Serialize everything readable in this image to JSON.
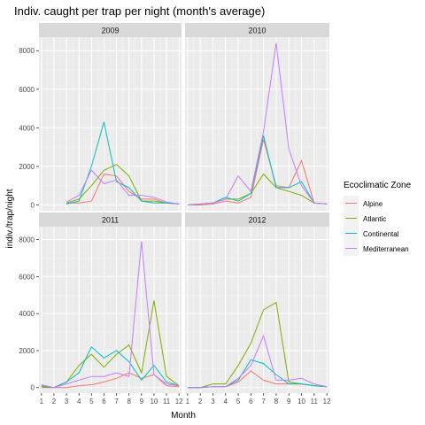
{
  "chart_data": {
    "type": "line",
    "title": "Indiv. caught per trap per night (month's average)",
    "xlabel": "Month",
    "ylabel": "indiv./trap/night",
    "x": [
      1,
      2,
      3,
      4,
      5,
      6,
      7,
      8,
      9,
      10,
      11,
      12
    ],
    "x_tick_labels": [
      "1",
      "2",
      "3",
      "4",
      "5",
      "6",
      "7",
      "8",
      "9",
      "10",
      "11",
      "12"
    ],
    "y_ticks": [
      0,
      2000,
      4000,
      6000,
      8000
    ],
    "y_tick_labels": [
      "0",
      "2000",
      "4000",
      "6000",
      "8000"
    ],
    "ylim": [
      -300,
      8700
    ],
    "xlim": [
      0.8,
      12.2
    ],
    "grid": true,
    "legend": {
      "title": "Ecoclimatic Zone",
      "position": "right",
      "entries": [
        "Alpine",
        "Atlantic",
        "Continental",
        "Mediterranean"
      ]
    },
    "colors": {
      "Alpine": "#F8766D",
      "Atlantic": "#7CAE00",
      "Continental": "#00BFC4",
      "Mediterranean": "#C77CFF",
      "panel_bg": "#EBEBEB",
      "strip_bg": "#D9D9D9",
      "grid_major": "#FFFFFF"
    },
    "panels": [
      {
        "label": "2009",
        "series": [
          {
            "name": "Alpine",
            "x": [
              3,
              4,
              5,
              6,
              7,
              8,
              9,
              10,
              11,
              12
            ],
            "values": [
              100,
              100,
              200,
              1600,
              1500,
              700,
              300,
              300,
              100,
              50
            ]
          },
          {
            "name": "Atlantic",
            "x": [
              3,
              4,
              5,
              6,
              7,
              8,
              9,
              10,
              11,
              12
            ],
            "values": [
              100,
              300,
              1000,
              1800,
              2100,
              1500,
              200,
              200,
              100,
              50
            ]
          },
          {
            "name": "Continental",
            "x": [
              3,
              4,
              5,
              6,
              7,
              8,
              9,
              10,
              11,
              12
            ],
            "values": [
              50,
              200,
              2000,
              4300,
              1200,
              900,
              200,
              100,
              100,
              50
            ]
          },
          {
            "name": "Mediterranean",
            "x": [
              3,
              4,
              5,
              6,
              7,
              8,
              9,
              10,
              11,
              12
            ],
            "values": [
              150,
              500,
              1800,
              1100,
              1300,
              500,
              500,
              400,
              150,
              50
            ]
          }
        ]
      },
      {
        "label": "2010",
        "series": [
          {
            "name": "Alpine",
            "x": [
              1,
              2,
              3,
              4,
              5,
              6,
              7,
              8,
              9,
              10,
              11,
              12
            ],
            "values": [
              0,
              0,
              50,
              200,
              100,
              400,
              3400,
              1000,
              900,
              2300,
              100,
              50
            ]
          },
          {
            "name": "Atlantic",
            "x": [
              1,
              2,
              3,
              4,
              5,
              6,
              7,
              8,
              9,
              10,
              11,
              12
            ],
            "values": [
              0,
              50,
              100,
              300,
              300,
              600,
              1600,
              900,
              700,
              500,
              100,
              50
            ]
          },
          {
            "name": "Continental",
            "x": [
              1,
              2,
              3,
              4,
              5,
              6,
              7,
              8,
              9,
              10,
              11,
              12
            ],
            "values": [
              0,
              50,
              100,
              400,
              200,
              600,
              3600,
              900,
              900,
              1200,
              100,
              50
            ]
          },
          {
            "name": "Mediterranean",
            "x": [
              1,
              2,
              3,
              4,
              5,
              6,
              7,
              8,
              9,
              10,
              11,
              12
            ],
            "values": [
              0,
              50,
              100,
              300,
              1500,
              700,
              3800,
              8400,
              2900,
              1000,
              100,
              50
            ]
          }
        ]
      },
      {
        "label": "2011",
        "series": [
          {
            "name": "Alpine",
            "x": [
              1,
              2,
              3,
              4,
              5,
              6,
              7,
              8,
              9,
              10,
              11,
              12
            ],
            "values": [
              0,
              0,
              0,
              100,
              150,
              300,
              500,
              800,
              500,
              700,
              100,
              50
            ]
          },
          {
            "name": "Atlantic",
            "x": [
              1,
              2,
              3,
              4,
              5,
              6,
              7,
              8,
              9,
              10,
              11,
              12
            ],
            "values": [
              50,
              0,
              300,
              1200,
              1800,
              1100,
              1800,
              2300,
              800,
              4700,
              600,
              100
            ]
          },
          {
            "name": "Continental",
            "x": [
              1,
              2,
              3,
              4,
              5,
              6,
              7,
              8,
              9,
              10,
              11,
              12
            ],
            "values": [
              100,
              0,
              300,
              800,
              2200,
              1600,
              2000,
              1400,
              400,
              1200,
              300,
              100
            ]
          },
          {
            "name": "Mediterranean",
            "x": [
              1,
              2,
              3,
              4,
              5,
              6,
              7,
              8,
              9,
              10,
              11,
              12
            ],
            "values": [
              150,
              0,
              200,
              400,
              600,
              600,
              800,
              600,
              7900,
              700,
              200,
              100
            ]
          }
        ]
      },
      {
        "label": "2012",
        "series": [
          {
            "name": "Alpine",
            "x": [
              1,
              2,
              3,
              4,
              5,
              6,
              7,
              8,
              9,
              10,
              11,
              12
            ],
            "values": [
              0,
              0,
              50,
              50,
              300,
              900,
              400,
              200,
              200,
              200,
              100,
              50
            ]
          },
          {
            "name": "Atlantic",
            "x": [
              1,
              2,
              3,
              4,
              5,
              6,
              7,
              8,
              9,
              10,
              11,
              12
            ],
            "values": [
              0,
              0,
              200,
              200,
              1200,
              2400,
              4200,
              4600,
              300,
              200,
              100,
              50
            ]
          },
          {
            "name": "Continental",
            "x": [
              1,
              2,
              3,
              4,
              5,
              6,
              7,
              8,
              9,
              10,
              11,
              12
            ],
            "values": [
              0,
              0,
              50,
              50,
              400,
              1500,
              1300,
              700,
              200,
              200,
              100,
              50
            ]
          },
          {
            "name": "Mediterranean",
            "x": [
              1,
              2,
              3,
              4,
              5,
              6,
              7,
              8,
              9,
              10,
              11,
              12
            ],
            "values": [
              0,
              0,
              50,
              50,
              500,
              1200,
              2800,
              400,
              400,
              500,
              200,
              50
            ]
          }
        ]
      }
    ]
  }
}
